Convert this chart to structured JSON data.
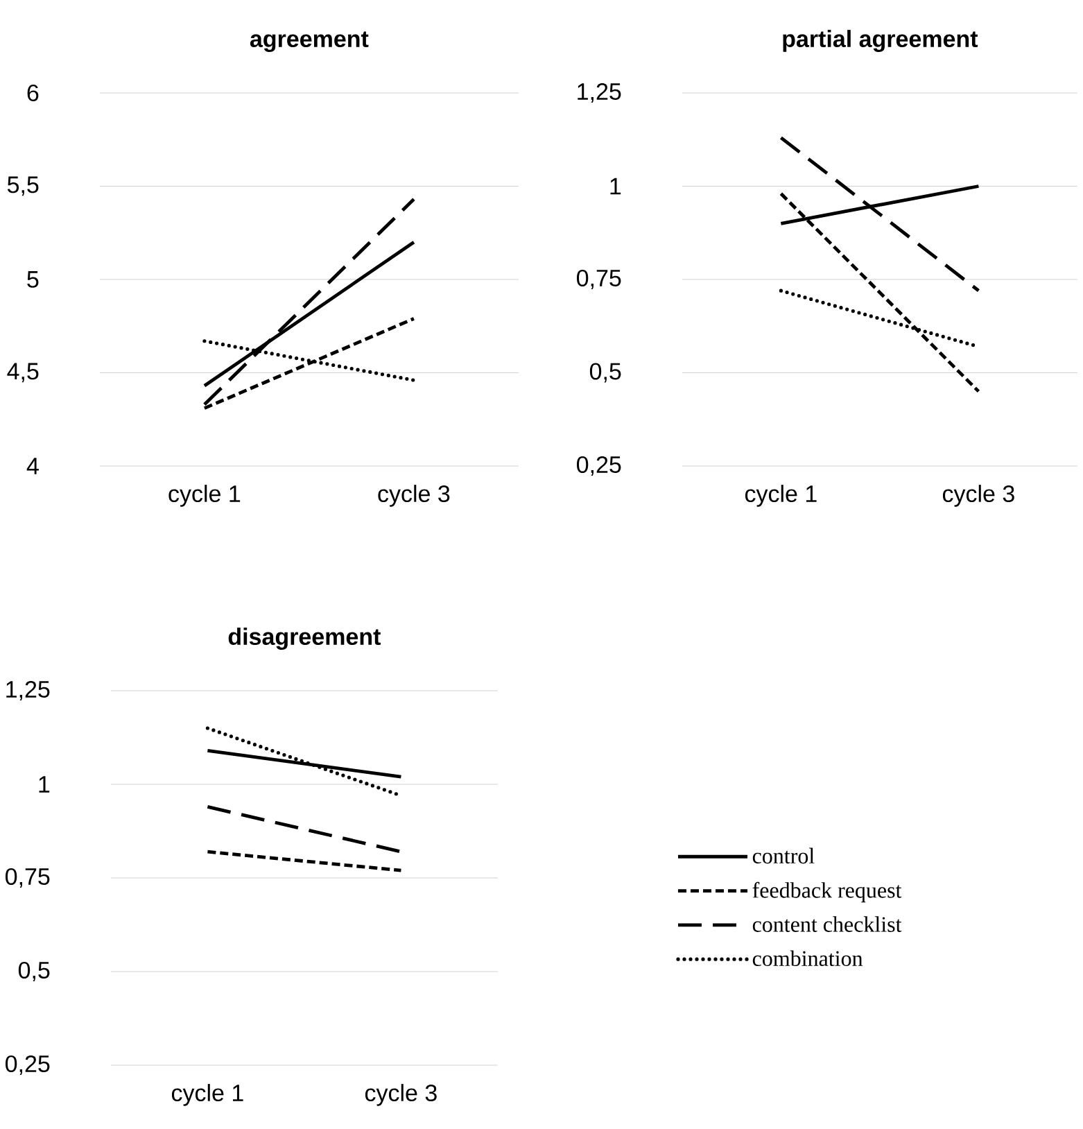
{
  "chart_data": [
    {
      "type": "line",
      "title": "agreement",
      "categories": [
        "cycle 1",
        "cycle 3"
      ],
      "ylim": [
        4,
        6
      ],
      "yticks": [
        4,
        {
          "value": 4.5,
          "label": "4,5"
        },
        5,
        {
          "value": 5.5,
          "label": "5,5"
        },
        6
      ],
      "grid": "y",
      "series": [
        {
          "color": "#000000",
          "line_style": "solid",
          "values": [
            4.43,
            5.2
          ]
        },
        {
          "color": "#000000",
          "line_style": "dashed",
          "values": [
            4.31,
            4.79
          ]
        },
        {
          "color": "#000000",
          "line_style": "long dashed",
          "values": [
            4.33,
            5.43
          ]
        },
        {
          "color": "#000000",
          "line_style": "dotted",
          "values": [
            4.67,
            4.46
          ]
        }
      ]
    },
    {
      "type": "line",
      "title": "partial agreement",
      "categories": [
        "cycle 1",
        "cycle 3"
      ],
      "ylim": [
        0.25,
        1.25
      ],
      "yticks": [
        {
          "value": 0.25,
          "label": "0,25"
        },
        {
          "value": 0.5,
          "label": "0,5"
        },
        {
          "value": 0.75,
          "label": "0,75"
        },
        1,
        {
          "value": 1.25,
          "label": "1,25"
        }
      ],
      "grid": "y",
      "series": [
        {
          "color": "#000000",
          "line_style": "solid",
          "values": [
            0.9,
            1.0
          ]
        },
        {
          "color": "#000000",
          "line_style": "dashed",
          "values": [
            0.98,
            0.45
          ]
        },
        {
          "color": "#000000",
          "line_style": "long dashed",
          "values": [
            1.13,
            0.72
          ]
        },
        {
          "color": "#000000",
          "line_style": "dotted",
          "values": [
            0.72,
            0.57
          ]
        }
      ]
    },
    {
      "type": "line",
      "title": "disagreement",
      "categories": [
        "cycle 1",
        "cycle 3"
      ],
      "ylim": [
        0.25,
        1.25
      ],
      "yticks": [
        {
          "value": 0.25,
          "label": "0,25"
        },
        {
          "value": 0.5,
          "label": "0,5"
        },
        {
          "value": 0.75,
          "label": "0,75"
        },
        1,
        {
          "value": 1.25,
          "label": "1,25"
        }
      ],
      "grid": "y",
      "legend": "right",
      "series": [
        {
          "name": "control",
          "color": "#000000",
          "line_style": "solid",
          "values": [
            1.09,
            1.02
          ]
        },
        {
          "name": "feedback request",
          "color": "#000000",
          "line_style": "dashed",
          "values": [
            0.82,
            0.77
          ]
        },
        {
          "name": "content checklist",
          "color": "#000000",
          "line_style": "long dashed",
          "values": [
            0.94,
            0.82
          ]
        },
        {
          "name": "combination",
          "color": "#000000",
          "line_style": "dotted",
          "values": [
            1.15,
            0.97
          ]
        }
      ]
    }
  ]
}
